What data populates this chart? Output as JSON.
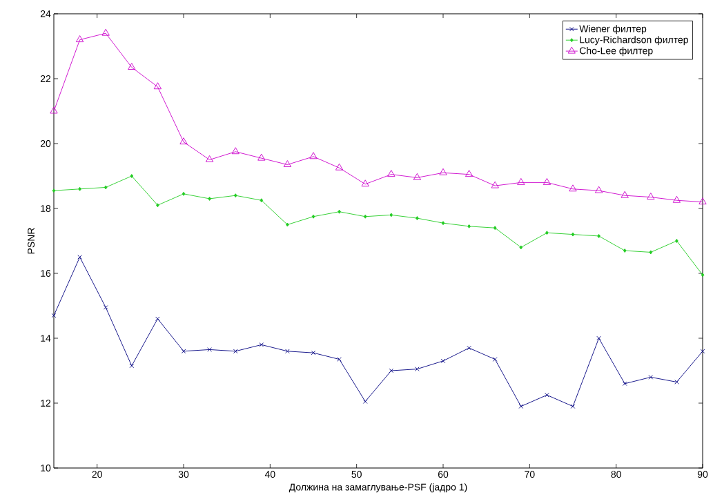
{
  "chart_data": {
    "type": "line",
    "xlabel": "Должина на замаглување-PSF (јадро 1)",
    "ylabel": "PSNR",
    "x": [
      15,
      18,
      21,
      24,
      27,
      30,
      33,
      36,
      39,
      42,
      45,
      48,
      51,
      54,
      57,
      60,
      63,
      66,
      69,
      72,
      75,
      78,
      81,
      84,
      87,
      90
    ],
    "series": [
      {
        "name": "Wiener филтер",
        "color": "#000080",
        "marker": "cross",
        "values": [
          14.7,
          16.5,
          14.95,
          13.15,
          14.6,
          13.6,
          13.65,
          13.6,
          13.8,
          13.6,
          13.55,
          13.35,
          12.05,
          13.0,
          13.05,
          13.3,
          13.7,
          13.35,
          11.9,
          12.25,
          11.9,
          14.0,
          12.6,
          12.8,
          12.65,
          13.6
        ]
      },
      {
        "name": "Lucy-Richardson филтер",
        "color": "#22cc22",
        "marker": "diamond",
        "values": [
          18.55,
          18.6,
          18.65,
          19.0,
          18.1,
          18.45,
          18.3,
          18.4,
          18.25,
          17.5,
          17.75,
          17.9,
          17.75,
          17.8,
          17.7,
          17.55,
          17.45,
          17.4,
          16.8,
          17.25,
          17.2,
          17.15,
          16.7,
          16.65,
          17.0,
          15.95
        ]
      },
      {
        "name": "Cho-Lee филтер",
        "color": "#cc00cc",
        "marker": "triangle",
        "values": [
          21.0,
          23.2,
          23.4,
          22.35,
          21.75,
          20.05,
          19.5,
          19.75,
          19.55,
          19.35,
          19.6,
          19.25,
          18.75,
          19.05,
          18.95,
          19.1,
          19.05,
          18.7,
          18.8,
          18.8,
          18.6,
          18.55,
          18.4,
          18.35,
          18.25,
          18.2
        ]
      }
    ],
    "xlim": [
      15,
      90
    ],
    "xticks": [
      20,
      30,
      40,
      50,
      60,
      70,
      80,
      90
    ],
    "ylim": [
      10,
      24
    ],
    "yticks": [
      10,
      12,
      14,
      16,
      18,
      20,
      22,
      24
    ],
    "legend": "top right",
    "line_style": "solid"
  }
}
